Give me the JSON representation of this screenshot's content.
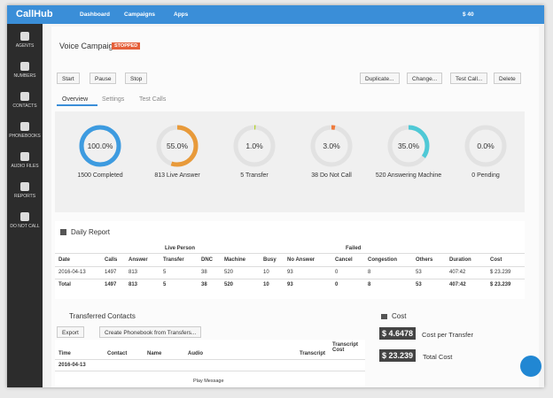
{
  "topbar": {
    "logo": "CallHub",
    "nav": [
      "Dashboard",
      "Campaigns",
      "Apps"
    ],
    "balance": "$ 40"
  },
  "sidebar": [
    "AGENTS",
    "NUMBERS",
    "CONTACTS",
    "PHONEBOOKS",
    "AUDIO FILES",
    "REPORTS",
    "DO NOT CALL"
  ],
  "header": {
    "title": "Voice Campaign",
    "status": "STOPPED"
  },
  "buttons": {
    "left": [
      "Start",
      "Pause",
      "Stop"
    ],
    "right": [
      "Duplicate...",
      "Change...",
      "Test Call...",
      "Delete"
    ]
  },
  "tabs": [
    "Overview",
    "Settings",
    "Test Calls"
  ],
  "stats": [
    {
      "percent": {
        "value": 100,
        "label": "100.0%"
      },
      "label": "1500 Completed",
      "color": "#3d9be0"
    },
    {
      "percent": {
        "value": 55,
        "label": "55.0%"
      },
      "label": "813 Live Answer",
      "color": "#e89a3a"
    },
    {
      "percent": {
        "value": 1,
        "label": "1.0%"
      },
      "label": "5 Transfer",
      "color": "#b3d232"
    },
    {
      "percent": {
        "value": 3,
        "label": "3.0%"
      },
      "label": "38 Do Not Call",
      "color": "#ef7b3c"
    },
    {
      "percent": {
        "value": 35,
        "label": "35.0%"
      },
      "label": "520 Answering Machine",
      "color": "#4fc9d6"
    },
    {
      "percent": {
        "value": 0,
        "label": "0.0%"
      },
      "label": "0 Pending",
      "color": "#cccccc"
    }
  ],
  "daily_report": {
    "title": "Daily Report",
    "groups": [
      "Live Person",
      "Failed"
    ],
    "columns": [
      "Date",
      "Calls",
      "Answer",
      "Transfer",
      "DNC",
      "Machine",
      "Busy",
      "No Answer",
      "Cancel",
      "Congestion",
      "Others",
      "Duration",
      "Cost"
    ],
    "rows": [
      [
        "2016-04-13",
        "1497",
        "813",
        "5",
        "38",
        "520",
        "10",
        "93",
        "0",
        "8",
        "53",
        "407:42",
        "$ 23.239"
      ],
      [
        "Total",
        "1497",
        "813",
        "5",
        "38",
        "520",
        "10",
        "93",
        "0",
        "8",
        "53",
        "407:42",
        "$ 23.239"
      ]
    ]
  },
  "transferred": {
    "title": "Transferred Contacts",
    "buttons": [
      "Export",
      "Create Phonebook from Transfers..."
    ],
    "columns": [
      "Time",
      "Contact",
      "Name",
      "Audio",
      "Transcript",
      "Transcript Cost"
    ],
    "group": "2016-04-13",
    "audio": "Play Message"
  },
  "cost": {
    "title": "Cost",
    "items": [
      {
        "amount": "$ 4.6478",
        "label": "Cost per Transfer"
      },
      {
        "amount": "$ 23.239",
        "label": "Total Cost"
      }
    ]
  }
}
